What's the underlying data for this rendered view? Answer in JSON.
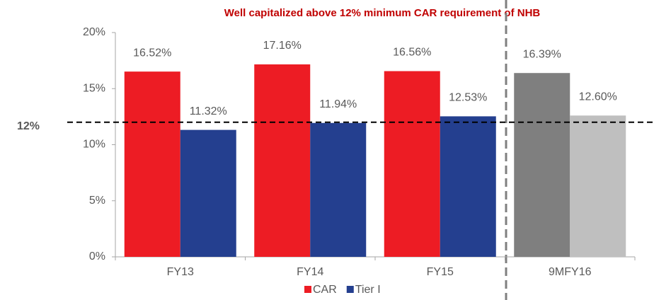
{
  "chart_data": {
    "type": "bar",
    "title": "Well capitalized above 12% minimum CAR requirement of NHB",
    "categories": [
      "FY13",
      "FY14",
      "FY15",
      "9MFY16"
    ],
    "series": [
      {
        "name": "CAR",
        "color": "#ed1c24",
        "point_colors": [
          "#ed1c24",
          "#ed1c24",
          "#ed1c24",
          "#7f7f7f"
        ],
        "values": [
          16.52,
          17.16,
          16.56,
          16.39
        ],
        "value_labels": [
          "16.52%",
          "17.16%",
          "16.56%",
          "16.39%"
        ]
      },
      {
        "name": "Tier I",
        "color": "#243f8f",
        "point_colors": [
          "#243f8f",
          "#243f8f",
          "#243f8f",
          "#bfbfbf"
        ],
        "values": [
          11.32,
          11.94,
          12.53,
          12.6
        ],
        "value_labels": [
          "11.32%",
          "11.94%",
          "12.53%",
          "12.60%"
        ]
      }
    ],
    "ylim": [
      0,
      20
    ],
    "yticks": [
      {
        "value": 0,
        "label": "0%"
      },
      {
        "value": 5,
        "label": "5%"
      },
      {
        "value": 10,
        "label": "10%"
      },
      {
        "value": 15,
        "label": "15%"
      },
      {
        "value": 20,
        "label": "20%"
      }
    ],
    "reference_line": {
      "value": 12,
      "label": "12%"
    },
    "legend": "bottom",
    "grid": false
  }
}
